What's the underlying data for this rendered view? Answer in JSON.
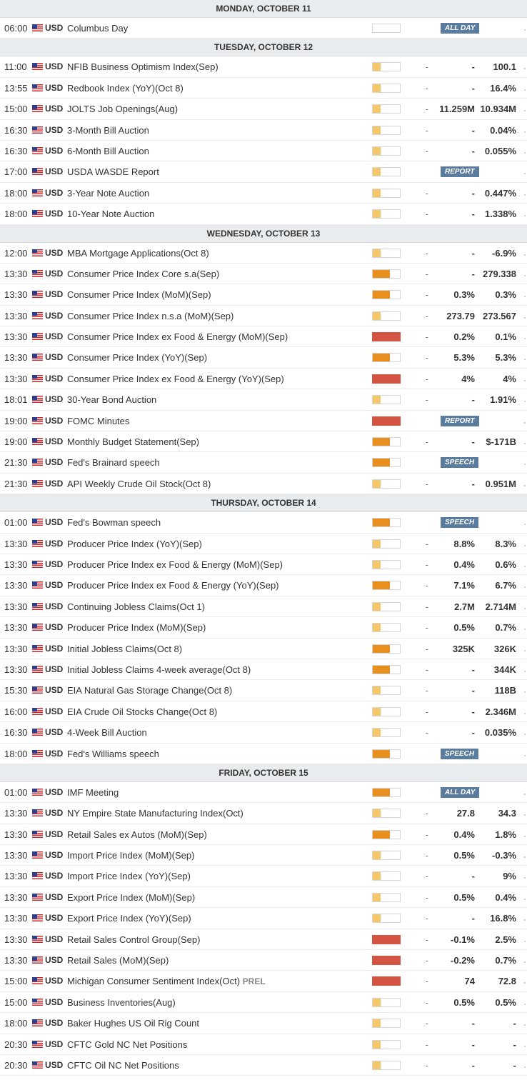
{
  "days": [
    {
      "header": "MONDAY, OCTOBER 11",
      "events": [
        {
          "time": "06:00",
          "currency": "USD",
          "event": "Columbus Day",
          "impact": "none",
          "tag": "ALL DAY"
        }
      ]
    },
    {
      "header": "TUESDAY, OCTOBER 12",
      "events": [
        {
          "time": "11:00",
          "currency": "USD",
          "event": "NFIB Business Optimism Index(Sep)",
          "impact": "low",
          "actual": "-",
          "consensus": "-",
          "previous": "100.1"
        },
        {
          "time": "13:55",
          "currency": "USD",
          "event": "Redbook Index (YoY)(Oct 8)",
          "impact": "low",
          "actual": "-",
          "consensus": "-",
          "previous": "16.4%"
        },
        {
          "time": "15:00",
          "currency": "USD",
          "event": "JOLTS Job Openings(Aug)",
          "impact": "low",
          "actual": "-",
          "consensus": "11.259M",
          "previous": "10.934M"
        },
        {
          "time": "16:30",
          "currency": "USD",
          "event": "3-Month Bill Auction",
          "impact": "low",
          "actual": "-",
          "consensus": "-",
          "previous": "0.04%"
        },
        {
          "time": "16:30",
          "currency": "USD",
          "event": "6-Month Bill Auction",
          "impact": "low",
          "actual": "-",
          "consensus": "-",
          "previous": "0.055%"
        },
        {
          "time": "17:00",
          "currency": "USD",
          "event": "USDA WASDE Report",
          "impact": "low",
          "tag": "REPORT"
        },
        {
          "time": "18:00",
          "currency": "USD",
          "event": "3-Year Note Auction",
          "impact": "low",
          "actual": "-",
          "consensus": "-",
          "previous": "0.447%"
        },
        {
          "time": "18:00",
          "currency": "USD",
          "event": "10-Year Note Auction",
          "impact": "low",
          "actual": "-",
          "consensus": "-",
          "previous": "1.338%"
        }
      ]
    },
    {
      "header": "WEDNESDAY, OCTOBER 13",
      "events": [
        {
          "time": "12:00",
          "currency": "USD",
          "event": "MBA Mortgage Applications(Oct 8)",
          "impact": "low",
          "actual": "-",
          "consensus": "-",
          "previous": "-6.9%"
        },
        {
          "time": "13:30",
          "currency": "USD",
          "event": "Consumer Price Index Core s.a(Sep)",
          "impact": "med",
          "actual": "-",
          "consensus": "-",
          "previous": "279.338"
        },
        {
          "time": "13:30",
          "currency": "USD",
          "event": "Consumer Price Index (MoM)(Sep)",
          "impact": "med",
          "actual": "-",
          "consensus": "0.3%",
          "previous": "0.3%"
        },
        {
          "time": "13:30",
          "currency": "USD",
          "event": "Consumer Price Index n.s.a (MoM)(Sep)",
          "impact": "low",
          "actual": "-",
          "consensus": "273.79",
          "previous": "273.567"
        },
        {
          "time": "13:30",
          "currency": "USD",
          "event": "Consumer Price Index ex Food & Energy (MoM)(Sep)",
          "impact": "high",
          "actual": "-",
          "consensus": "0.2%",
          "previous": "0.1%"
        },
        {
          "time": "13:30",
          "currency": "USD",
          "event": "Consumer Price Index (YoY)(Sep)",
          "impact": "med",
          "actual": "-",
          "consensus": "5.3%",
          "previous": "5.3%"
        },
        {
          "time": "13:30",
          "currency": "USD",
          "event": "Consumer Price Index ex Food & Energy (YoY)(Sep)",
          "impact": "high",
          "actual": "-",
          "consensus": "4%",
          "previous": "4%"
        },
        {
          "time": "18:01",
          "currency": "USD",
          "event": "30-Year Bond Auction",
          "impact": "low",
          "actual": "-",
          "consensus": "-",
          "previous": "1.91%"
        },
        {
          "time": "19:00",
          "currency": "USD",
          "event": "FOMC Minutes",
          "impact": "high",
          "tag": "REPORT"
        },
        {
          "time": "19:00",
          "currency": "USD",
          "event": "Monthly Budget Statement(Sep)",
          "impact": "med",
          "actual": "-",
          "consensus": "-",
          "previous": "$-171B"
        },
        {
          "time": "21:30",
          "currency": "USD",
          "event": "Fed's Brainard speech",
          "impact": "med",
          "tag": "SPEECH"
        },
        {
          "time": "21:30",
          "currency": "USD",
          "event": "API Weekly Crude Oil Stock(Oct 8)",
          "impact": "low",
          "actual": "-",
          "consensus": "-",
          "previous": "0.951M"
        }
      ]
    },
    {
      "header": "THURSDAY, OCTOBER 14",
      "events": [
        {
          "time": "01:00",
          "currency": "USD",
          "event": "Fed's Bowman speech",
          "impact": "med",
          "tag": "SPEECH"
        },
        {
          "time": "13:30",
          "currency": "USD",
          "event": "Producer Price Index (YoY)(Sep)",
          "impact": "low",
          "actual": "-",
          "consensus": "8.8%",
          "previous": "8.3%"
        },
        {
          "time": "13:30",
          "currency": "USD",
          "event": "Producer Price Index ex Food & Energy (MoM)(Sep)",
          "impact": "low",
          "actual": "-",
          "consensus": "0.4%",
          "previous": "0.6%"
        },
        {
          "time": "13:30",
          "currency": "USD",
          "event": "Producer Price Index ex Food & Energy (YoY)(Sep)",
          "impact": "med",
          "actual": "-",
          "consensus": "7.1%",
          "previous": "6.7%"
        },
        {
          "time": "13:30",
          "currency": "USD",
          "event": "Continuing Jobless Claims(Oct 1)",
          "impact": "low",
          "actual": "-",
          "consensus": "2.7M",
          "previous": "2.714M"
        },
        {
          "time": "13:30",
          "currency": "USD",
          "event": "Producer Price Index (MoM)(Sep)",
          "impact": "low",
          "actual": "-",
          "consensus": "0.5%",
          "previous": "0.7%"
        },
        {
          "time": "13:30",
          "currency": "USD",
          "event": "Initial Jobless Claims(Oct 8)",
          "impact": "med",
          "actual": "-",
          "consensus": "325K",
          "previous": "326K"
        },
        {
          "time": "13:30",
          "currency": "USD",
          "event": "Initial Jobless Claims 4-week average(Oct 8)",
          "impact": "med",
          "actual": "-",
          "consensus": "-",
          "previous": "344K"
        },
        {
          "time": "15:30",
          "currency": "USD",
          "event": "EIA Natural Gas Storage Change(Oct 8)",
          "impact": "low",
          "actual": "-",
          "consensus": "-",
          "previous": "118B"
        },
        {
          "time": "16:00",
          "currency": "USD",
          "event": "EIA Crude Oil Stocks Change(Oct 8)",
          "impact": "low",
          "actual": "-",
          "consensus": "-",
          "previous": "2.346M"
        },
        {
          "time": "16:30",
          "currency": "USD",
          "event": "4-Week Bill Auction",
          "impact": "low",
          "actual": "-",
          "consensus": "-",
          "previous": "0.035%"
        },
        {
          "time": "18:00",
          "currency": "USD",
          "event": "Fed's Williams speech",
          "impact": "med",
          "tag": "SPEECH"
        }
      ]
    },
    {
      "header": "FRIDAY, OCTOBER 15",
      "events": [
        {
          "time": "01:00",
          "currency": "USD",
          "event": "IMF Meeting",
          "impact": "med",
          "tag": "ALL DAY"
        },
        {
          "time": "13:30",
          "currency": "USD",
          "event": "NY Empire State Manufacturing Index(Oct)",
          "impact": "low",
          "actual": "-",
          "consensus": "27.8",
          "previous": "34.3"
        },
        {
          "time": "13:30",
          "currency": "USD",
          "event": "Retail Sales ex Autos (MoM)(Sep)",
          "impact": "med",
          "actual": "-",
          "consensus": "0.4%",
          "previous": "1.8%"
        },
        {
          "time": "13:30",
          "currency": "USD",
          "event": "Import Price Index (MoM)(Sep)",
          "impact": "low",
          "actual": "-",
          "consensus": "0.5%",
          "previous": "-0.3%"
        },
        {
          "time": "13:30",
          "currency": "USD",
          "event": "Import Price Index (YoY)(Sep)",
          "impact": "low",
          "actual": "-",
          "consensus": "-",
          "previous": "9%"
        },
        {
          "time": "13:30",
          "currency": "USD",
          "event": "Export Price Index (MoM)(Sep)",
          "impact": "low",
          "actual": "-",
          "consensus": "0.5%",
          "previous": "0.4%"
        },
        {
          "time": "13:30",
          "currency": "USD",
          "event": "Export Price Index (YoY)(Sep)",
          "impact": "low",
          "actual": "-",
          "consensus": "-",
          "previous": "16.8%"
        },
        {
          "time": "13:30",
          "currency": "USD",
          "event": "Retail Sales Control Group(Sep)",
          "impact": "high",
          "actual": "-",
          "consensus": "-0.1%",
          "previous": "2.5%"
        },
        {
          "time": "13:30",
          "currency": "USD",
          "event": "Retail Sales (MoM)(Sep)",
          "impact": "high",
          "actual": "-",
          "consensus": "-0.2%",
          "previous": "0.7%"
        },
        {
          "time": "15:00",
          "currency": "USD",
          "event": "Michigan Consumer Sentiment Index(Oct)",
          "suffix": "PREL",
          "impact": "high",
          "actual": "-",
          "consensus": "74",
          "previous": "72.8"
        },
        {
          "time": "15:00",
          "currency": "USD",
          "event": "Business Inventories(Aug)",
          "impact": "low",
          "actual": "-",
          "consensus": "0.5%",
          "previous": "0.5%"
        },
        {
          "time": "18:00",
          "currency": "USD",
          "event": "Baker Hughes US Oil Rig Count",
          "impact": "low",
          "actual": "-",
          "consensus": "-",
          "previous": "-"
        },
        {
          "time": "20:30",
          "currency": "USD",
          "event": "CFTC Gold NC Net Positions",
          "impact": "low",
          "actual": "-",
          "consensus": "-",
          "previous": "-"
        },
        {
          "time": "20:30",
          "currency": "USD",
          "event": "CFTC Oil NC Net Positions",
          "impact": "low",
          "actual": "-",
          "consensus": "-",
          "previous": "-"
        }
      ]
    }
  ]
}
